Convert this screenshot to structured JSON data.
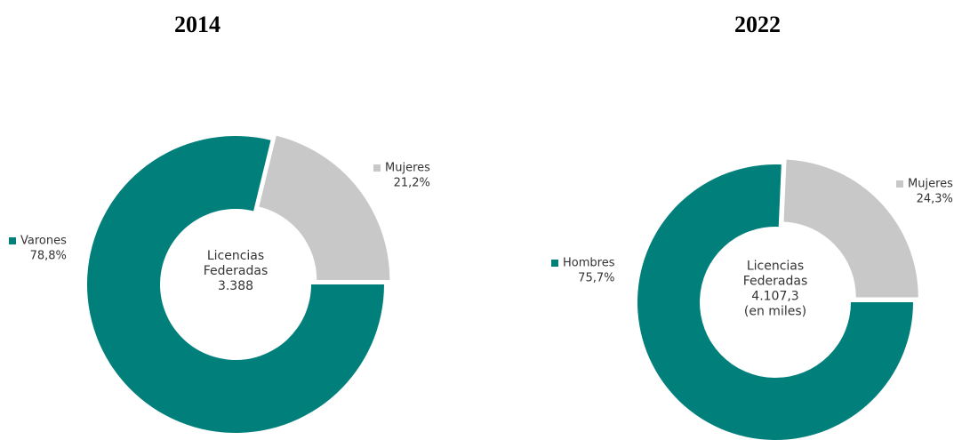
{
  "chart_data": [
    {
      "type": "pie",
      "title": "2014",
      "donut": true,
      "categories": [
        "Varones",
        "Mujeres"
      ],
      "values": [
        78.8,
        21.2
      ],
      "value_labels": [
        "78,8%",
        "21,2%"
      ],
      "colors": [
        "#007f7b",
        "#c8c8c8"
      ],
      "center_text": [
        "Licencias",
        "Federadas",
        "3.388"
      ]
    },
    {
      "type": "pie",
      "title": "2022",
      "donut": true,
      "categories": [
        "Hombres",
        "Mujeres"
      ],
      "values": [
        75.7,
        24.3
      ],
      "value_labels": [
        "75,7%",
        "24,3%"
      ],
      "colors": [
        "#007f7b",
        "#c8c8c8"
      ],
      "center_text": [
        "Licencias",
        "Federadas",
        "4.107,3",
        "(en miles)"
      ]
    }
  ]
}
